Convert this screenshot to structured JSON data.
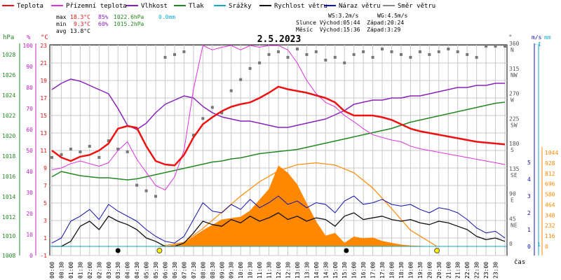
{
  "chart_data": {
    "type": "line",
    "title": "2.5.2023",
    "legend": [
      {
        "label": "Teplota",
        "color": "#ee1111"
      },
      {
        "label": "Přízemní teplota",
        "color": "#dd33dd"
      },
      {
        "label": "Vlhkost",
        "color": "#8822bb"
      },
      {
        "label": "Tlak",
        "color": "#228822"
      },
      {
        "label": "Srážky",
        "color": "#11aacc"
      },
      {
        "label": "Rychlost větru",
        "color": "#111111"
      },
      {
        "label": "Náraz větru",
        "color": "#1111aa"
      },
      {
        "label": "Směr větru",
        "color": "#888888"
      }
    ],
    "stats": {
      "max_label": "max",
      "max_temp": "18.3°C",
      "max_hum": "85%",
      "max_press": "1022.6hPa",
      "max_rain": "0.0mm",
      "min_label": "min",
      "min_temp": "9.3°C",
      "min_hum": "60%",
      "min_press": "1015.2hPa",
      "avg_label": "avg",
      "avg_temp": "13.8°C",
      "ws": "WS:3.2m/s",
      "wg": "WG:4.5m/s",
      "sun": "Slunce Východ:05:44  Západ:20:24",
      "moon": "Měsíc  Východ:15:36  Západ:3:29"
    },
    "axes": {
      "hpa_title": "hPa",
      "hpa_ticks": [
        "1028",
        "1026",
        "1024",
        "1022",
        "1020",
        "1018",
        "1016",
        "1014",
        "1012",
        "1010",
        "1008"
      ],
      "hum_title": "%",
      "hum_ticks": [
        "100",
        "90",
        "80",
        "70",
        "60",
        "50",
        "40",
        "30",
        "20",
        "10",
        "0"
      ],
      "temp_title": "°C",
      "temp_ticks": [
        "23",
        "21",
        "19",
        "17",
        "15",
        "13",
        "11",
        "9",
        "7",
        "5",
        "3",
        "1",
        "-1"
      ],
      "temp_range": [
        -1,
        23
      ],
      "dir_title": "°",
      "dir_ticks": [
        "360 N",
        "315 NW",
        "270 W",
        "225 SW",
        "180 S",
        "135 SE",
        "90 E",
        "45 NE",
        "0"
      ],
      "dir_range": [
        0,
        360
      ],
      "ms_title": "m/s",
      "ms_ticks": [
        "5",
        "4",
        "3",
        "2",
        "1",
        "0"
      ],
      "mm_title": "mm",
      "mm_ticks": [
        "-1",
        "1"
      ],
      "wm2_ticks": [
        "1044",
        "928",
        "812",
        "696",
        "580",
        "464",
        "348",
        "232",
        "116",
        "0"
      ],
      "x_ticks": [
        "00:00",
        "00:30",
        "01:00",
        "01:30",
        "02:00",
        "02:30",
        "03:00",
        "03:30",
        "04:00",
        "04:30",
        "05:00",
        "05:30",
        "06:00",
        "06:30",
        "07:00",
        "07:30",
        "08:00",
        "08:30",
        "09:00",
        "09:30",
        "10:00",
        "10:30",
        "11:00",
        "11:30",
        "12:00",
        "12:30",
        "13:00",
        "13:30",
        "14:00",
        "14:30",
        "15:00",
        "15:30",
        "16:00",
        "16:30",
        "17:00",
        "17:30",
        "18:00",
        "18:30",
        "19:00",
        "19:30",
        "20:00",
        "20:30",
        "21:00",
        "21:30",
        "22:00",
        "22:30",
        "23:00",
        "23:30"
      ],
      "x_label": "čas",
      "x_range_hours": [
        0,
        24
      ]
    },
    "series": [
      {
        "name": "Teplota",
        "unit": "°C",
        "x": [
          0,
          0.5,
          1,
          1.5,
          2,
          2.5,
          3,
          3.5,
          4,
          4.5,
          5,
          5.5,
          6,
          6.5,
          7,
          7.5,
          8,
          8.5,
          9,
          9.5,
          10,
          10.5,
          11,
          11.5,
          12,
          12.5,
          13,
          13.5,
          14,
          14.5,
          15,
          15.5,
          16,
          16.5,
          17,
          17.5,
          18,
          18.5,
          19,
          19.5,
          20,
          20.5,
          21,
          21.5,
          22,
          22.5,
          23,
          23.5,
          24
        ],
        "y": [
          11,
          10.2,
          9.8,
          10.3,
          10.5,
          11.0,
          11.8,
          13.5,
          13.8,
          13.6,
          11.5,
          9.8,
          9.4,
          9.3,
          10.5,
          12.5,
          14.0,
          14.8,
          15.5,
          16.0,
          16.3,
          16.5,
          17.0,
          17.6,
          18.3,
          18.0,
          17.8,
          17.6,
          17.3,
          17.0,
          16.5,
          15.5,
          15.0,
          15.0,
          15.0,
          14.8,
          14.5,
          14.0,
          13.5,
          13.2,
          13.0,
          12.8,
          12.6,
          12.4,
          12.2,
          12.0,
          11.9,
          11.8,
          11.7
        ]
      },
      {
        "name": "Přízemní teplota",
        "unit": "°C",
        "x": [
          0,
          0.5,
          1,
          1.5,
          2,
          2.5,
          3,
          3.5,
          4,
          4.5,
          5,
          5.5,
          6,
          6.5,
          7,
          7.5,
          8,
          8.5,
          9,
          9.5,
          10,
          10.5,
          11,
          11.5,
          12,
          12.5,
          13,
          13.5,
          14,
          14.5,
          15,
          15.5,
          16,
          16.5,
          17,
          17.5,
          18,
          18.5,
          19,
          19.5,
          20,
          20.5,
          21,
          21.5,
          22,
          22.5,
          23,
          23.5,
          24
        ],
        "y": [
          8.8,
          9.0,
          9.5,
          9.8,
          9.5,
          9.2,
          9.6,
          11.0,
          12.0,
          10.0,
          8.5,
          7.0,
          6.5,
          8.0,
          11.0,
          18.0,
          23.0,
          22.5,
          22.8,
          23.0,
          22.5,
          23.0,
          22.8,
          23.0,
          23.0,
          22.5,
          21.0,
          19.0,
          17.5,
          16.5,
          16.0,
          15.0,
          14.3,
          13.5,
          12.8,
          12.5,
          12.2,
          12.0,
          11.5,
          11.2,
          11.0,
          10.8,
          10.6,
          10.4,
          10.2,
          10.0,
          9.8,
          9.6,
          9.4
        ]
      },
      {
        "name": "Vlhkost",
        "unit": "%",
        "x": [
          0,
          0.5,
          1,
          1.5,
          2,
          2.5,
          3,
          3.5,
          4,
          4.5,
          5,
          5.5,
          6,
          6.5,
          7,
          7.5,
          8,
          8.5,
          9,
          9.5,
          10,
          10.5,
          11,
          11.5,
          12,
          12.5,
          13,
          13.5,
          14,
          14.5,
          15,
          15.5,
          16,
          16.5,
          17,
          17.5,
          18,
          18.5,
          19,
          19.5,
          20,
          20.5,
          21,
          21.5,
          22,
          22.5,
          23,
          23.5,
          24
        ],
        "y": [
          79,
          82,
          84,
          83,
          81,
          79,
          77,
          70,
          62,
          60,
          63,
          68,
          72,
          74,
          76,
          75,
          71,
          68,
          66,
          65,
          64,
          64,
          63,
          62,
          61,
          61,
          62,
          63,
          64,
          65,
          67,
          69,
          72,
          73,
          74,
          74,
          75,
          75,
          76,
          76,
          77,
          78,
          79,
          80,
          80,
          81,
          81,
          82,
          82
        ]
      },
      {
        "name": "Tlak",
        "unit": "hPa",
        "x": [
          0,
          0.5,
          1,
          1.5,
          2,
          2.5,
          3,
          3.5,
          4,
          4.5,
          5,
          5.5,
          6,
          6.5,
          7,
          7.5,
          8,
          8.5,
          9,
          9.5,
          10,
          10.5,
          11,
          11.5,
          12,
          12.5,
          13,
          13.5,
          14,
          14.5,
          15,
          15.5,
          16,
          16.5,
          17,
          17.5,
          18,
          18.5,
          19,
          19.5,
          20,
          20.5,
          21,
          21.5,
          22,
          22.5,
          23,
          23.5,
          24
        ],
        "y": [
          1015.5,
          1016.0,
          1015.8,
          1015.6,
          1015.5,
          1015.4,
          1015.4,
          1015.3,
          1015.2,
          1015.3,
          1015.5,
          1015.7,
          1015.9,
          1016.1,
          1016.3,
          1016.5,
          1016.7,
          1016.9,
          1017.0,
          1017.2,
          1017.3,
          1017.5,
          1017.7,
          1017.8,
          1017.9,
          1018.0,
          1018.1,
          1018.3,
          1018.5,
          1018.7,
          1018.9,
          1019.1,
          1019.3,
          1019.5,
          1019.7,
          1019.9,
          1020.1,
          1020.4,
          1020.7,
          1020.9,
          1021.1,
          1021.3,
          1021.5,
          1021.7,
          1021.9,
          1022.1,
          1022.3,
          1022.5,
          1022.6
        ]
      },
      {
        "name": "Rychlost větru",
        "unit": "m/s",
        "x": [
          0,
          0.5,
          1,
          1.5,
          2,
          2.5,
          3,
          3.5,
          4,
          4.5,
          5,
          5.5,
          6,
          6.5,
          7,
          7.5,
          8,
          8.5,
          9,
          9.5,
          10,
          10.5,
          11,
          11.5,
          12,
          12.5,
          13,
          13.5,
          14,
          14.5,
          15,
          15.5,
          16,
          16.5,
          17,
          17.5,
          18,
          18.5,
          19,
          19.5,
          20,
          20.5,
          21,
          21.5,
          22,
          22.5,
          23,
          23.5,
          24
        ],
        "y": [
          0,
          0,
          0.3,
          1.2,
          1.5,
          1.0,
          1.8,
          1.5,
          1.3,
          1.0,
          0.5,
          0.3,
          0,
          0,
          0.2,
          0.8,
          1.5,
          1.3,
          1.2,
          1.6,
          1.4,
          1.8,
          1.5,
          1.7,
          2.0,
          1.6,
          1.8,
          1.5,
          1.7,
          1.6,
          1.2,
          1.8,
          2.0,
          1.6,
          1.7,
          1.8,
          1.6,
          1.5,
          1.6,
          1.4,
          1.3,
          1.5,
          1.4,
          1.2,
          1.0,
          0.6,
          0.4,
          0.5,
          0.3
        ]
      },
      {
        "name": "Náraz větru",
        "unit": "m/s",
        "x": [
          0,
          0.5,
          1,
          1.5,
          2,
          2.5,
          3,
          3.5,
          4,
          4.5,
          5,
          5.5,
          6,
          6.5,
          7,
          7.5,
          8,
          8.5,
          9,
          9.5,
          10,
          10.5,
          11,
          11.5,
          12,
          12.5,
          13,
          13.5,
          14,
          14.5,
          15,
          15.5,
          16,
          16.5,
          17,
          17.5,
          18,
          18.5,
          19,
          19.5,
          20,
          20.5,
          21,
          21.5,
          22,
          22.5,
          23,
          23.5,
          24
        ],
        "y": [
          0.2,
          0.5,
          1.5,
          1.8,
          2.2,
          1.6,
          2.5,
          2.1,
          1.8,
          1.5,
          1.0,
          0.6,
          0.3,
          0.2,
          0.6,
          1.6,
          2.6,
          2.1,
          2.0,
          2.5,
          2.2,
          2.8,
          2.3,
          2.6,
          3.0,
          2.5,
          2.7,
          2.3,
          2.6,
          2.5,
          2.0,
          2.7,
          3.0,
          2.5,
          2.6,
          2.8,
          2.5,
          2.4,
          2.5,
          2.2,
          2.0,
          2.3,
          2.2,
          2.0,
          1.6,
          1.1,
          0.8,
          0.9,
          0.5
        ]
      },
      {
        "name": "Směr větru",
        "unit": "°",
        "x": [
          0,
          0.5,
          1,
          1.5,
          2,
          2.5,
          3,
          3.5,
          4,
          4.5,
          5,
          5.5,
          6,
          6.5,
          7,
          7.5,
          8,
          8.5,
          9,
          9.5,
          10,
          10.5,
          11,
          11.5,
          12,
          12.5,
          13,
          13.5,
          14,
          14.5,
          15,
          15.5,
          16,
          16.5,
          17,
          17.5,
          18,
          18.5,
          19,
          19.5,
          20,
          20.5,
          21,
          21.5,
          22,
          22.5,
          23,
          23.5,
          24
        ],
        "y": [
          160,
          165,
          175,
          170,
          180,
          160,
          190,
          175,
          170,
          110,
          100,
          90,
          340,
          345,
          350,
          200,
          230,
          250,
          240,
          280,
          300,
          320,
          330,
          345,
          350,
          340,
          355,
          345,
          350,
          335,
          340,
          330,
          345,
          350,
          340,
          355,
          350,
          345,
          340,
          350,
          345,
          350,
          355,
          350,
          345,
          340,
          360,
          360,
          360
        ]
      },
      {
        "name": "Solar",
        "unit": "W/m²",
        "x": [
          5.7,
          6,
          7,
          8,
          9,
          10,
          10.5,
          11,
          11.5,
          12,
          12.5,
          13,
          13.5,
          14,
          14.5,
          15,
          15.5,
          16,
          16.5,
          17,
          17.5,
          18,
          18.5,
          19,
          20.4
        ],
        "y": [
          0,
          0,
          40,
          180,
          300,
          330,
          400,
          520,
          640,
          900,
          820,
          690,
          480,
          280,
          120,
          150,
          40,
          110,
          90,
          100,
          60,
          40,
          20,
          10,
          0
        ]
      },
      {
        "name": "Sun elevation",
        "unit": "",
        "x": [
          5.7,
          7,
          8,
          9,
          10,
          11,
          12,
          13,
          14,
          15,
          16,
          17,
          18,
          19,
          20.4
        ],
        "y": [
          0,
          45,
          200,
          380,
          560,
          720,
          840,
          910,
          930,
          905,
          820,
          650,
          420,
          180,
          0
        ]
      }
    ],
    "rain": {
      "name": "Srážky",
      "value": 0.0,
      "unit": "mm"
    },
    "markers": {
      "moon": [
        {
          "x": 3.5
        },
        {
          "x": 15.6
        }
      ],
      "sun": [
        {
          "x": 5.7
        },
        {
          "x": 20.4
        }
      ]
    },
    "colors": {
      "temp": "#ee1111",
      "ground": "#dd33dd",
      "humidity": "#8822bb",
      "pressure": "#228822",
      "rain": "#11aacc",
      "wind": "#111111",
      "gust": "#1111aa",
      "dir": "#777777",
      "solar": "#ff8800",
      "sunline": "#ff8800",
      "grid": "#c8c8c8",
      "hum_axis": "#bb22bb",
      "hpa_axis": "#228822",
      "temp_axis": "#dd1111",
      "ms_axis": "#1111aa",
      "mm_axis": "#11aacc",
      "wm2_axis": "#ff8800"
    }
  }
}
